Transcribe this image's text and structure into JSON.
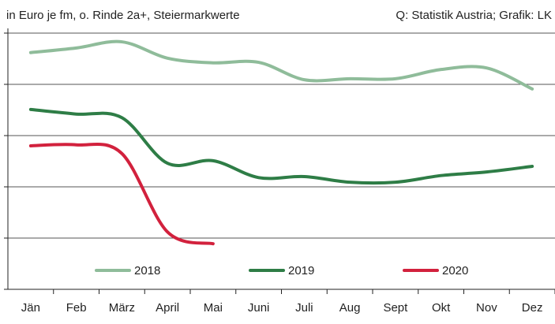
{
  "chart_data": {
    "type": "line",
    "subtitle": "in Euro je fm, o. Rinde 2a+, Steiermarkwerte",
    "source": "Q: Statistik Austria; Grafik: LK",
    "categories": [
      "Jän",
      "Feb",
      "März",
      "April",
      "Mai",
      "Juni",
      "Juli",
      "Aug",
      "Sept",
      "Okt",
      "Nov",
      "Dez"
    ],
    "series": [
      {
        "name": "2018",
        "color": "#8fbc9a",
        "values": [
          4.62,
          4.71,
          4.83,
          4.51,
          4.42,
          4.43,
          4.09,
          4.11,
          4.11,
          4.29,
          4.32,
          3.91
        ]
      },
      {
        "name": "2019",
        "color": "#2e7d46",
        "values": [
          3.51,
          3.42,
          3.35,
          2.46,
          2.51,
          2.18,
          2.2,
          2.09,
          2.09,
          2.22,
          2.29,
          2.4
        ]
      },
      {
        "name": "2020",
        "color": "#d2213d",
        "values": [
          2.8,
          2.82,
          2.65,
          1.12,
          0.89,
          null,
          null,
          null,
          null,
          null,
          null,
          null
        ]
      }
    ],
    "ylim": [
      0,
      5
    ],
    "yticks": [
      0,
      1,
      2,
      3,
      4,
      5
    ],
    "grid": true,
    "legend": "bottom"
  }
}
